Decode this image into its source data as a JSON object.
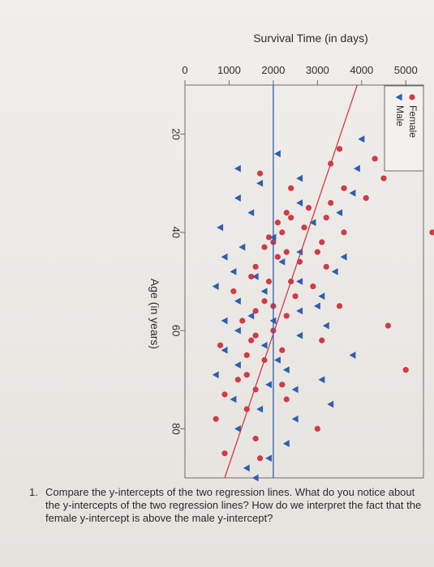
{
  "chart_data": {
    "type": "scatter",
    "title": "",
    "xlabel": "Age (in years)",
    "ylabel": "Survival Time (in days)",
    "xlim": [
      10,
      90
    ],
    "ylim": [
      0,
      5400
    ],
    "xticks": [
      "20",
      "40",
      "60",
      "80"
    ],
    "yticks": [
      "0",
      "1000",
      "2000",
      "3000",
      "4000",
      "5000"
    ],
    "legend": {
      "placement": "top-right",
      "entries": [
        "Female",
        "Male"
      ]
    },
    "series": [
      {
        "name": "Female",
        "color": "#d13a46",
        "marker": "circle",
        "regression": [
          [
            10,
            3900
          ],
          [
            90,
            900
          ]
        ],
        "points": [
          [
            23,
            3500
          ],
          [
            25,
            4300
          ],
          [
            26,
            3300
          ],
          [
            28,
            1700
          ],
          [
            29,
            4500
          ],
          [
            31,
            3600
          ],
          [
            31,
            2400
          ],
          [
            33,
            4100
          ],
          [
            34,
            3300
          ],
          [
            35,
            2800
          ],
          [
            36,
            2300
          ],
          [
            37,
            3200
          ],
          [
            37,
            2400
          ],
          [
            38,
            2100
          ],
          [
            39,
            2700
          ],
          [
            40,
            5600
          ],
          [
            40,
            3600
          ],
          [
            40,
            2200
          ],
          [
            41,
            1900
          ],
          [
            42,
            3100
          ],
          [
            42,
            2000
          ],
          [
            43,
            1800
          ],
          [
            44,
            3000
          ],
          [
            44,
            2300
          ],
          [
            45,
            2100
          ],
          [
            46,
            2600
          ],
          [
            47,
            3200
          ],
          [
            47,
            1600
          ],
          [
            49,
            1500
          ],
          [
            50,
            2400
          ],
          [
            50,
            1900
          ],
          [
            51,
            2900
          ],
          [
            52,
            1100
          ],
          [
            53,
            2500
          ],
          [
            54,
            1800
          ],
          [
            55,
            3500
          ],
          [
            55,
            2000
          ],
          [
            56,
            1600
          ],
          [
            57,
            2300
          ],
          [
            58,
            1300
          ],
          [
            59,
            4600
          ],
          [
            60,
            2000
          ],
          [
            61,
            1600
          ],
          [
            62,
            3100
          ],
          [
            62,
            1500
          ],
          [
            63,
            800
          ],
          [
            64,
            2200
          ],
          [
            65,
            1400
          ],
          [
            66,
            1800
          ],
          [
            68,
            5000
          ],
          [
            69,
            1400
          ],
          [
            70,
            1200
          ],
          [
            71,
            2200
          ],
          [
            72,
            1600
          ],
          [
            73,
            900
          ],
          [
            74,
            2300
          ],
          [
            76,
            1400
          ],
          [
            78,
            700
          ],
          [
            80,
            3000
          ],
          [
            82,
            1600
          ],
          [
            85,
            900
          ],
          [
            86,
            1700
          ]
        ]
      },
      {
        "name": "Male",
        "color": "#2e5fae",
        "marker": "triangle",
        "regression": [
          [
            10,
            2000
          ],
          [
            90,
            2000
          ]
        ],
        "points": [
          [
            21,
            4000
          ],
          [
            24,
            2100
          ],
          [
            27,
            3900
          ],
          [
            27,
            1200
          ],
          [
            29,
            2600
          ],
          [
            30,
            1700
          ],
          [
            32,
            3800
          ],
          [
            33,
            1200
          ],
          [
            34,
            2600
          ],
          [
            36,
            1500
          ],
          [
            36,
            3500
          ],
          [
            38,
            2900
          ],
          [
            39,
            800
          ],
          [
            41,
            2000
          ],
          [
            43,
            1300
          ],
          [
            44,
            2600
          ],
          [
            45,
            3600
          ],
          [
            45,
            900
          ],
          [
            46,
            2200
          ],
          [
            48,
            1100
          ],
          [
            48,
            3400
          ],
          [
            49,
            1600
          ],
          [
            50,
            2600
          ],
          [
            51,
            700
          ],
          [
            52,
            1800
          ],
          [
            53,
            3100
          ],
          [
            54,
            1200
          ],
          [
            55,
            3000
          ],
          [
            56,
            2600
          ],
          [
            57,
            1500
          ],
          [
            58,
            2000
          ],
          [
            58,
            900
          ],
          [
            59,
            3200
          ],
          [
            60,
            1200
          ],
          [
            61,
            2600
          ],
          [
            63,
            1800
          ],
          [
            64,
            900
          ],
          [
            65,
            3800
          ],
          [
            66,
            2100
          ],
          [
            67,
            1200
          ],
          [
            68,
            2300
          ],
          [
            69,
            700
          ],
          [
            70,
            3100
          ],
          [
            71,
            1900
          ],
          [
            72,
            2500
          ],
          [
            74,
            1100
          ],
          [
            75,
            3300
          ],
          [
            76,
            1700
          ],
          [
            78,
            2500
          ],
          [
            80,
            1200
          ],
          [
            83,
            2300
          ],
          [
            86,
            1900
          ],
          [
            88,
            1400
          ],
          [
            90,
            1600
          ]
        ]
      }
    ]
  },
  "question": {
    "number": "1.",
    "text": "Compare the y-intercepts of the two regression lines. What do you notice about the y-intercepts of the two regression lines? How do we interpret the fact that the female y-intercept is above the male y-intercept?"
  }
}
